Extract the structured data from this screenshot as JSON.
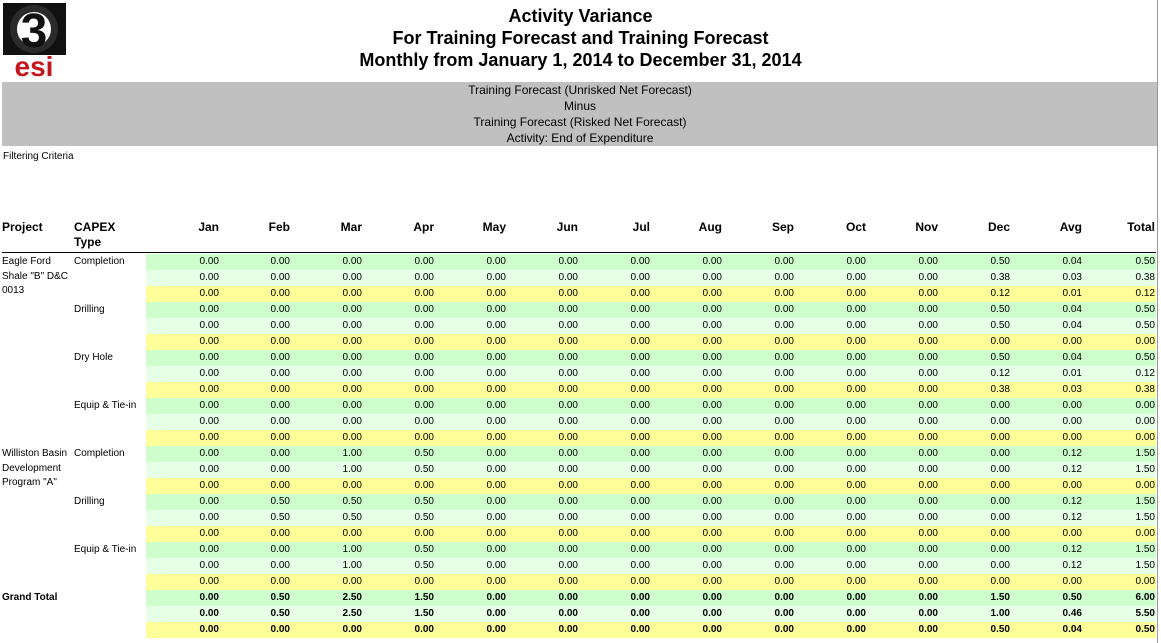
{
  "logo": {
    "number": "3",
    "text": "esi",
    "colors": {
      "dark": "#111111",
      "red": "#c4171d"
    }
  },
  "title": {
    "line1": "Activity Variance",
    "line2": "For Training Forecast and Training Forecast",
    "line3": "Monthly from January 1, 2014 to December 31, 2014"
  },
  "band": {
    "line1": "Training Forecast (Unrisked Net Forecast)",
    "line2": "Minus",
    "line3": "Training Forecast (Risked Net Forecast)",
    "line4": "Activity: End of Expenditure"
  },
  "filter_label": "Filtering Criteria",
  "columns": {
    "project": "Project",
    "capex_line1": "CAPEX",
    "capex_line2": "Type",
    "values": [
      "Jan",
      "Feb",
      "Mar",
      "Apr",
      "May",
      "Jun",
      "Jul",
      "Aug",
      "Sep",
      "Oct",
      "Nov",
      "Dec",
      "Avg",
      "Total"
    ]
  },
  "row_colors": {
    "green": "#ccffcc",
    "lightgreen": "#e6ffe6",
    "yellow": "#ffff99"
  },
  "projects": [
    {
      "lines": [
        "Eagle Ford",
        "Shale \"B\" D&C",
        "0013"
      ],
      "start_row": 0
    },
    {
      "lines": [
        "Williston Basin",
        "Development",
        "Program \"A\""
      ],
      "start_row": 12
    }
  ],
  "capex_labels": [
    {
      "text": "Completion",
      "row": 0
    },
    {
      "text": "Drilling",
      "row": 3
    },
    {
      "text": "Dry Hole",
      "row": 6
    },
    {
      "text": "Equip & Tie-in",
      "row": 9
    },
    {
      "text": "Completion",
      "row": 12
    },
    {
      "text": "Drilling",
      "row": 15
    },
    {
      "text": "Equip & Tie-in",
      "row": 18
    }
  ],
  "grand_total_label": "Grand Total",
  "grand_total_row": 21,
  "rows": [
    [
      "0.00",
      "0.00",
      "0.00",
      "0.00",
      "0.00",
      "0.00",
      "0.00",
      "0.00",
      "0.00",
      "0.00",
      "0.00",
      "0.50",
      "0.04",
      "0.50"
    ],
    [
      "0.00",
      "0.00",
      "0.00",
      "0.00",
      "0.00",
      "0.00",
      "0.00",
      "0.00",
      "0.00",
      "0.00",
      "0.00",
      "0.38",
      "0.03",
      "0.38"
    ],
    [
      "0.00",
      "0.00",
      "0.00",
      "0.00",
      "0.00",
      "0.00",
      "0.00",
      "0.00",
      "0.00",
      "0.00",
      "0.00",
      "0.12",
      "0.01",
      "0.12"
    ],
    [
      "0.00",
      "0.00",
      "0.00",
      "0.00",
      "0.00",
      "0.00",
      "0.00",
      "0.00",
      "0.00",
      "0.00",
      "0.00",
      "0.50",
      "0.04",
      "0.50"
    ],
    [
      "0.00",
      "0.00",
      "0.00",
      "0.00",
      "0.00",
      "0.00",
      "0.00",
      "0.00",
      "0.00",
      "0.00",
      "0.00",
      "0.50",
      "0.04",
      "0.50"
    ],
    [
      "0.00",
      "0.00",
      "0.00",
      "0.00",
      "0.00",
      "0.00",
      "0.00",
      "0.00",
      "0.00",
      "0.00",
      "0.00",
      "0.00",
      "0.00",
      "0.00"
    ],
    [
      "0.00",
      "0.00",
      "0.00",
      "0.00",
      "0.00",
      "0.00",
      "0.00",
      "0.00",
      "0.00",
      "0.00",
      "0.00",
      "0.50",
      "0.04",
      "0.50"
    ],
    [
      "0.00",
      "0.00",
      "0.00",
      "0.00",
      "0.00",
      "0.00",
      "0.00",
      "0.00",
      "0.00",
      "0.00",
      "0.00",
      "0.12",
      "0.01",
      "0.12"
    ],
    [
      "0.00",
      "0.00",
      "0.00",
      "0.00",
      "0.00",
      "0.00",
      "0.00",
      "0.00",
      "0.00",
      "0.00",
      "0.00",
      "0.38",
      "0.03",
      "0.38"
    ],
    [
      "0.00",
      "0.00",
      "0.00",
      "0.00",
      "0.00",
      "0.00",
      "0.00",
      "0.00",
      "0.00",
      "0.00",
      "0.00",
      "0.00",
      "0.00",
      "0.00"
    ],
    [
      "0.00",
      "0.00",
      "0.00",
      "0.00",
      "0.00",
      "0.00",
      "0.00",
      "0.00",
      "0.00",
      "0.00",
      "0.00",
      "0.00",
      "0.00",
      "0.00"
    ],
    [
      "0.00",
      "0.00",
      "0.00",
      "0.00",
      "0.00",
      "0.00",
      "0.00",
      "0.00",
      "0.00",
      "0.00",
      "0.00",
      "0.00",
      "0.00",
      "0.00"
    ],
    [
      "0.00",
      "0.00",
      "1.00",
      "0.50",
      "0.00",
      "0.00",
      "0.00",
      "0.00",
      "0.00",
      "0.00",
      "0.00",
      "0.00",
      "0.12",
      "1.50"
    ],
    [
      "0.00",
      "0.00",
      "1.00",
      "0.50",
      "0.00",
      "0.00",
      "0.00",
      "0.00",
      "0.00",
      "0.00",
      "0.00",
      "0.00",
      "0.12",
      "1.50"
    ],
    [
      "0.00",
      "0.00",
      "0.00",
      "0.00",
      "0.00",
      "0.00",
      "0.00",
      "0.00",
      "0.00",
      "0.00",
      "0.00",
      "0.00",
      "0.00",
      "0.00"
    ],
    [
      "0.00",
      "0.50",
      "0.50",
      "0.50",
      "0.00",
      "0.00",
      "0.00",
      "0.00",
      "0.00",
      "0.00",
      "0.00",
      "0.00",
      "0.12",
      "1.50"
    ],
    [
      "0.00",
      "0.50",
      "0.50",
      "0.50",
      "0.00",
      "0.00",
      "0.00",
      "0.00",
      "0.00",
      "0.00",
      "0.00",
      "0.00",
      "0.12",
      "1.50"
    ],
    [
      "0.00",
      "0.00",
      "0.00",
      "0.00",
      "0.00",
      "0.00",
      "0.00",
      "0.00",
      "0.00",
      "0.00",
      "0.00",
      "0.00",
      "0.00",
      "0.00"
    ],
    [
      "0.00",
      "0.00",
      "1.00",
      "0.50",
      "0.00",
      "0.00",
      "0.00",
      "0.00",
      "0.00",
      "0.00",
      "0.00",
      "0.00",
      "0.12",
      "1.50"
    ],
    [
      "0.00",
      "0.00",
      "1.00",
      "0.50",
      "0.00",
      "0.00",
      "0.00",
      "0.00",
      "0.00",
      "0.00",
      "0.00",
      "0.00",
      "0.12",
      "1.50"
    ],
    [
      "0.00",
      "0.00",
      "0.00",
      "0.00",
      "0.00",
      "0.00",
      "0.00",
      "0.00",
      "0.00",
      "0.00",
      "0.00",
      "0.00",
      "0.00",
      "0.00"
    ],
    [
      "0.00",
      "0.50",
      "2.50",
      "1.50",
      "0.00",
      "0.00",
      "0.00",
      "0.00",
      "0.00",
      "0.00",
      "0.00",
      "1.50",
      "0.50",
      "6.00"
    ],
    [
      "0.00",
      "0.50",
      "2.50",
      "1.50",
      "0.00",
      "0.00",
      "0.00",
      "0.00",
      "0.00",
      "0.00",
      "0.00",
      "1.00",
      "0.46",
      "5.50"
    ],
    [
      "0.00",
      "0.00",
      "0.00",
      "0.00",
      "0.00",
      "0.00",
      "0.00",
      "0.00",
      "0.00",
      "0.00",
      "0.00",
      "0.50",
      "0.04",
      "0.50"
    ]
  ]
}
